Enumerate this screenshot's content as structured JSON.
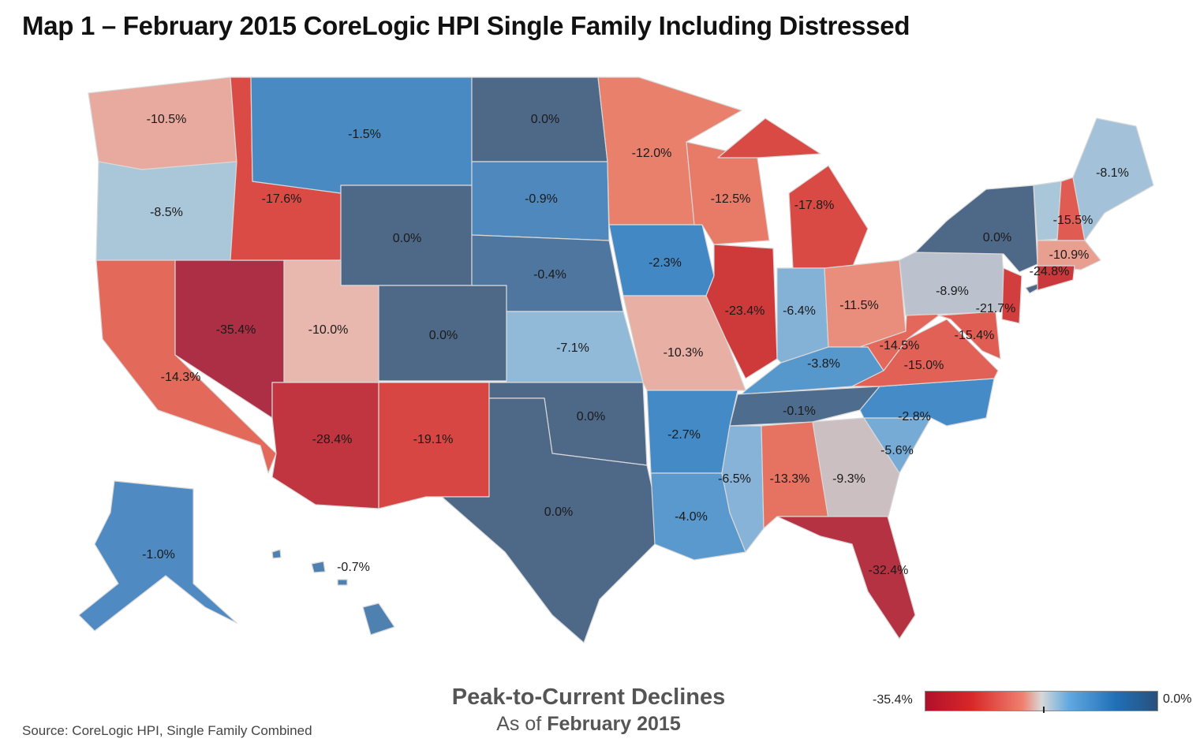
{
  "title": "Map 1 – February 2015 CoreLogic HPI Single Family Including Distressed",
  "legend": {
    "title": "Peak-to-Current Declines",
    "subtitle_prefix": "As of",
    "subtitle_date": "February 2015",
    "min_label": "-35.4%",
    "max_label": "0.0%",
    "color_stops": [
      {
        "value": -35.4,
        "color": "#ad2f45"
      },
      {
        "value": -23.0,
        "color": "#cf3a3a"
      },
      {
        "value": -17.0,
        "color": "#dc4d47"
      },
      {
        "value": -12.0,
        "color": "#e9806c"
      },
      {
        "value": -10.0,
        "color": "#e8b8ae"
      },
      {
        "value": -8.5,
        "color": "#aac6d9"
      },
      {
        "value": -5.5,
        "color": "#74aad6"
      },
      {
        "value": -2.5,
        "color": "#3f88c5"
      },
      {
        "value": -1.0,
        "color": "#4f8bc2"
      },
      {
        "value": 0.0,
        "color": "#4e6887"
      }
    ]
  },
  "source": "Source: CoreLogic HPI, Single Family Combined",
  "map_data": {
    "metric": "Peak-to-Current Declines",
    "states": [
      {
        "state": "WA",
        "value": -10.5,
        "label": "-10.5%"
      },
      {
        "state": "OR",
        "value": -8.5,
        "label": "-8.5%"
      },
      {
        "state": "CA",
        "value": -14.3,
        "label": "-14.3%"
      },
      {
        "state": "NV",
        "value": -35.4,
        "label": "-35.4%"
      },
      {
        "state": "ID",
        "value": -17.6,
        "label": "-17.6%"
      },
      {
        "state": "MT",
        "value": -1.5,
        "label": "-1.5%"
      },
      {
        "state": "WY",
        "value": 0.0,
        "label": "0.0%"
      },
      {
        "state": "UT",
        "value": -10.0,
        "label": "-10.0%"
      },
      {
        "state": "CO",
        "value": 0.0,
        "label": "0.0%"
      },
      {
        "state": "AZ",
        "value": -28.4,
        "label": "-28.4%"
      },
      {
        "state": "NM",
        "value": -19.1,
        "label": "-19.1%"
      },
      {
        "state": "ND",
        "value": 0.0,
        "label": "0.0%"
      },
      {
        "state": "SD",
        "value": -0.9,
        "label": "-0.9%"
      },
      {
        "state": "NE",
        "value": -0.4,
        "label": "-0.4%"
      },
      {
        "state": "KS",
        "value": -7.1,
        "label": "-7.1%"
      },
      {
        "state": "OK",
        "value": 0.0,
        "label": "0.0%"
      },
      {
        "state": "TX",
        "value": 0.0,
        "label": "0.0%"
      },
      {
        "state": "MN",
        "value": -12.0,
        "label": "-12.0%"
      },
      {
        "state": "IA",
        "value": -2.3,
        "label": "-2.3%"
      },
      {
        "state": "MO",
        "value": -10.3,
        "label": "-10.3%"
      },
      {
        "state": "AR",
        "value": -2.7,
        "label": "-2.7%"
      },
      {
        "state": "LA",
        "value": -4.0,
        "label": "-4.0%"
      },
      {
        "state": "WI",
        "value": -12.5,
        "label": "-12.5%"
      },
      {
        "state": "IL",
        "value": -23.4,
        "label": "-23.4%"
      },
      {
        "state": "MI",
        "value": -17.8,
        "label": "-17.8%"
      },
      {
        "state": "IN",
        "value": -6.4,
        "label": "-6.4%"
      },
      {
        "state": "OH",
        "value": -11.5,
        "label": "-11.5%"
      },
      {
        "state": "KY",
        "value": -3.8,
        "label": "-3.8%"
      },
      {
        "state": "TN",
        "value": -0.1,
        "label": "-0.1%"
      },
      {
        "state": "MS",
        "value": -6.5,
        "label": "-6.5%"
      },
      {
        "state": "AL",
        "value": -13.3,
        "label": "-13.3%"
      },
      {
        "state": "GA",
        "value": -9.3,
        "label": "-9.3%"
      },
      {
        "state": "FL",
        "value": -32.4,
        "label": "-32.4%"
      },
      {
        "state": "SC",
        "value": -5.6,
        "label": "-5.6%"
      },
      {
        "state": "NC",
        "value": -2.8,
        "label": "-2.8%"
      },
      {
        "state": "VA",
        "value": -15.0,
        "label": "-15.0%"
      },
      {
        "state": "WV",
        "value": -14.5,
        "label": "-14.5%"
      },
      {
        "state": "MD",
        "value": -15.4,
        "label": "-15.4%"
      },
      {
        "state": "PA",
        "value": -8.9,
        "label": "-8.9%"
      },
      {
        "state": "NJ",
        "value": -21.7,
        "label": "-21.7%"
      },
      {
        "state": "NY",
        "value": 0.0,
        "label": "0.0%"
      },
      {
        "state": "VT",
        "value": -8.5,
        "label": ""
      },
      {
        "state": "NH",
        "value": -15.5,
        "label": "-15.5%"
      },
      {
        "state": "ME",
        "value": -8.1,
        "label": "-8.1%"
      },
      {
        "state": "MA",
        "value": -10.9,
        "label": "-10.9%"
      },
      {
        "state": "CT",
        "value": -24.8,
        "label": "-24.8%"
      },
      {
        "state": "AK",
        "value": -1.0,
        "label": "-1.0%"
      },
      {
        "state": "HI",
        "value": -0.7,
        "label": "-0.7%"
      }
    ]
  }
}
